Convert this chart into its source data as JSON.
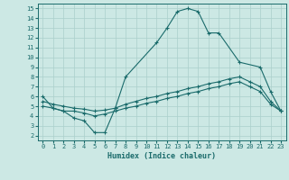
{
  "xlabel": "Humidex (Indice chaleur)",
  "bg_color": "#cce8e4",
  "line_color": "#1a6b6b",
  "grid_color": "#aacfcb",
  "xlim": [
    -0.5,
    23.5
  ],
  "ylim": [
    1.5,
    15.5
  ],
  "xticks": [
    0,
    1,
    2,
    3,
    4,
    5,
    6,
    7,
    8,
    9,
    10,
    11,
    12,
    13,
    14,
    15,
    16,
    17,
    18,
    19,
    20,
    21,
    22,
    23
  ],
  "yticks": [
    2,
    3,
    4,
    5,
    6,
    7,
    8,
    9,
    10,
    11,
    12,
    13,
    14,
    15
  ],
  "s1_x": [
    0,
    1,
    2,
    3,
    4,
    5,
    6,
    7,
    8,
    11,
    12,
    13,
    14,
    15,
    16,
    17,
    19,
    21,
    22,
    23
  ],
  "s1_y": [
    6.0,
    4.8,
    4.5,
    3.8,
    3.5,
    2.3,
    2.3,
    4.8,
    8.0,
    11.5,
    13.0,
    14.7,
    15.0,
    14.7,
    12.5,
    12.5,
    9.5,
    9.0,
    6.5,
    4.5
  ],
  "s2_x": [
    0,
    1,
    2,
    3,
    4,
    5,
    6,
    7,
    8,
    9,
    10,
    11,
    12,
    13,
    14,
    15,
    16,
    17,
    18,
    19,
    20,
    21,
    22,
    23
  ],
  "s2_y": [
    5.5,
    5.2,
    5.0,
    4.8,
    4.7,
    4.5,
    4.6,
    4.8,
    5.2,
    5.5,
    5.8,
    6.0,
    6.3,
    6.5,
    6.8,
    7.0,
    7.3,
    7.5,
    7.8,
    8.0,
    7.5,
    7.0,
    5.5,
    4.5
  ],
  "s3_x": [
    0,
    1,
    2,
    3,
    4,
    5,
    6,
    7,
    8,
    9,
    10,
    11,
    12,
    13,
    14,
    15,
    16,
    17,
    18,
    19,
    20,
    21,
    22,
    23
  ],
  "s3_y": [
    5.0,
    4.8,
    4.5,
    4.5,
    4.3,
    4.0,
    4.2,
    4.5,
    4.8,
    5.0,
    5.3,
    5.5,
    5.8,
    6.0,
    6.3,
    6.5,
    6.8,
    7.0,
    7.3,
    7.5,
    7.0,
    6.5,
    5.2,
    4.5
  ]
}
